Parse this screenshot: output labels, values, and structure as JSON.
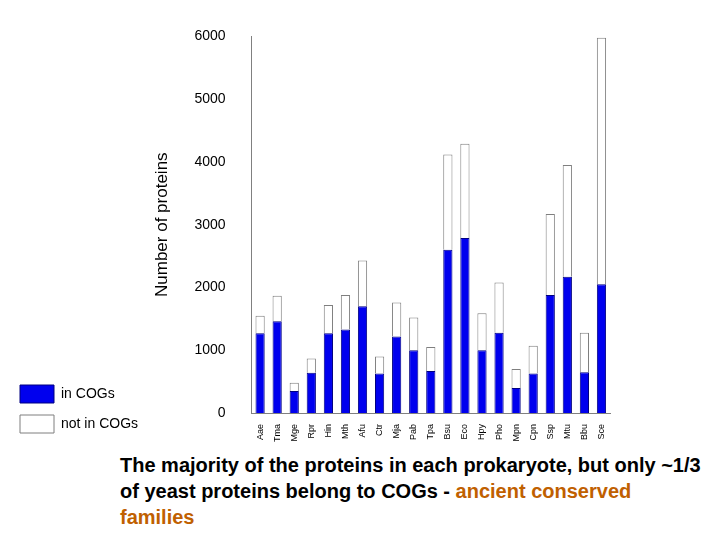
{
  "chart_data": {
    "type": "bar",
    "stacked": true,
    "grid": false,
    "legend": "lower left",
    "y_label": "Number of proteins",
    "categories": [
      "Aae",
      "Tma",
      "Mge",
      "Rpr",
      "Hin",
      "Mth",
      "Afu",
      "Ctr",
      "Mja",
      "Pab",
      "Tpa",
      "Bsu",
      "Eco",
      "Hpy",
      "Pho",
      "Mpn",
      "Cpn",
      "Ssp",
      "Mtu",
      "Bbu",
      "Sce"
    ],
    "series": [
      {
        "name": "in COGs",
        "color": "#0000ee",
        "values": [
          1270,
          1460,
          350,
          640,
          1270,
          1330,
          1700,
          630,
          1220,
          1000,
          670,
          2600,
          2790,
          1000,
          1280,
          400,
          630,
          1880,
          2170,
          650,
          2050
        ]
      },
      {
        "name": "not in COGs",
        "color": "#ffffff",
        "values": [
          280,
          410,
          130,
          230,
          450,
          550,
          730,
          270,
          540,
          520,
          380,
          1520,
          1500,
          590,
          800,
          300,
          440,
          1290,
          1780,
          630,
          3930
        ]
      }
    ],
    "ylim": [
      0,
      6000
    ],
    "yticks": [
      0,
      1000,
      2000,
      3000,
      4000,
      5000,
      6000
    ],
    "annotation": [
      "The majority of the proteins in each prokaryote, but only ~1/3 of yeast proteins belong to COGs -",
      "ancient conserved families"
    ]
  }
}
